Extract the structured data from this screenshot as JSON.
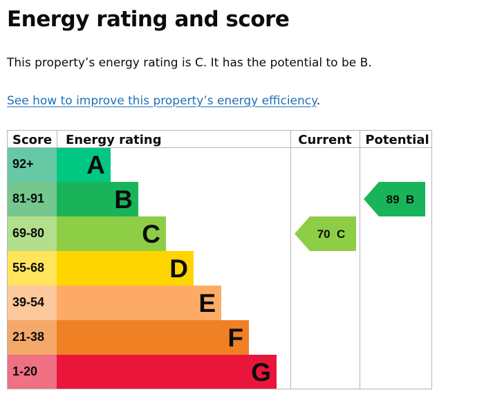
{
  "page": {
    "title": "Energy rating and score",
    "summary": "This property’s energy rating is C. It has the potential to be B.",
    "improve_link": "See how to improve this property’s energy efficiency",
    "improve_suffix": "."
  },
  "chart_data": {
    "type": "table",
    "headers": {
      "score": "Score",
      "rating": "Energy rating",
      "current": "Current",
      "potential": "Potential"
    },
    "bands": [
      {
        "score": "92+",
        "letter": "A",
        "color": "#00c781",
        "score_bg": "#66c9a6"
      },
      {
        "score": "81-91",
        "letter": "B",
        "color": "#19b459",
        "score_bg": "#75c78f"
      },
      {
        "score": "69-80",
        "letter": "C",
        "color": "#8dce46",
        "score_bg": "#b3df8c"
      },
      {
        "score": "55-68",
        "letter": "D",
        "color": "#ffd500",
        "score_bg": "#ffe45c"
      },
      {
        "score": "39-54",
        "letter": "E",
        "color": "#fcaa65",
        "score_bg": "#fdc89b"
      },
      {
        "score": "21-38",
        "letter": "F",
        "color": "#ef8023",
        "score_bg": "#f4a86a"
      },
      {
        "score": "1-20",
        "letter": "G",
        "color": "#e9153b",
        "score_bg": "#f07084"
      }
    ],
    "current": {
      "score": 70,
      "letter": "C",
      "label": "70  C",
      "color": "#8dce46"
    },
    "potential": {
      "score": 89,
      "letter": "B",
      "label": "89  B",
      "color": "#19b459"
    }
  }
}
